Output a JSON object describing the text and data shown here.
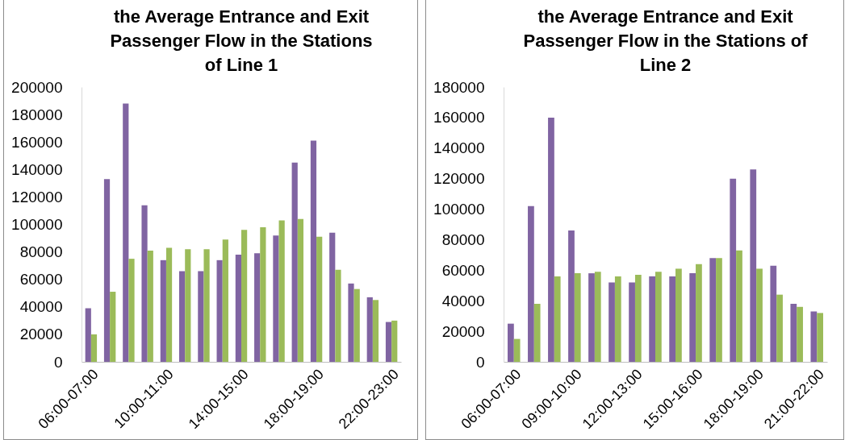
{
  "chart_data": [
    {
      "type": "bar",
      "title": "the Average Entrance and Exit Passenger Flow in the Stations of Line 1",
      "categories": [
        "06:00-07:00",
        null,
        null,
        null,
        "10:00-11:00",
        null,
        null,
        null,
        "14:00-15:00",
        null,
        null,
        null,
        "18:00-19:00",
        null,
        null,
        null,
        "22:00-23:00"
      ],
      "series": [
        {
          "color": "#8064a2",
          "values": [
            39000,
            133000,
            188000,
            114000,
            74000,
            66000,
            66000,
            74000,
            78000,
            79000,
            92000,
            145000,
            161000,
            94000,
            57000,
            47000,
            29000
          ]
        },
        {
          "color": "#9bbb59",
          "values": [
            20000,
            51000,
            75000,
            81000,
            83000,
            82000,
            82000,
            89000,
            96000,
            98000,
            103000,
            104000,
            91000,
            67000,
            53000,
            45000,
            30000
          ]
        }
      ],
      "ylim": [
        0,
        200000
      ],
      "yticks": [
        0,
        20000,
        40000,
        60000,
        80000,
        100000,
        120000,
        140000,
        160000,
        180000,
        200000
      ]
    },
    {
      "type": "bar",
      "title": "the Average Entrance and Exit Passenger Flow in the Stations of Line 2",
      "categories": [
        "06:00-07:00",
        null,
        null,
        "09:00-10:00",
        null,
        null,
        "12:00-13:00",
        null,
        null,
        "15:00-16:00",
        null,
        null,
        "18:00-19:00",
        null,
        null,
        "21:00-22:00"
      ],
      "series": [
        {
          "color": "#8064a2",
          "values": [
            25000,
            102000,
            160000,
            86000,
            58000,
            52000,
            52000,
            56000,
            56000,
            58000,
            68000,
            120000,
            126000,
            63000,
            38000,
            33000
          ]
        },
        {
          "color": "#9bbb59",
          "values": [
            15000,
            38000,
            56000,
            58000,
            59000,
            56000,
            57000,
            59000,
            61000,
            64000,
            68000,
            73000,
            61000,
            44000,
            36000,
            32000
          ]
        }
      ],
      "ylim": [
        0,
        180000
      ],
      "yticks": [
        0,
        20000,
        40000,
        60000,
        80000,
        100000,
        120000,
        140000,
        160000,
        180000
      ]
    }
  ]
}
